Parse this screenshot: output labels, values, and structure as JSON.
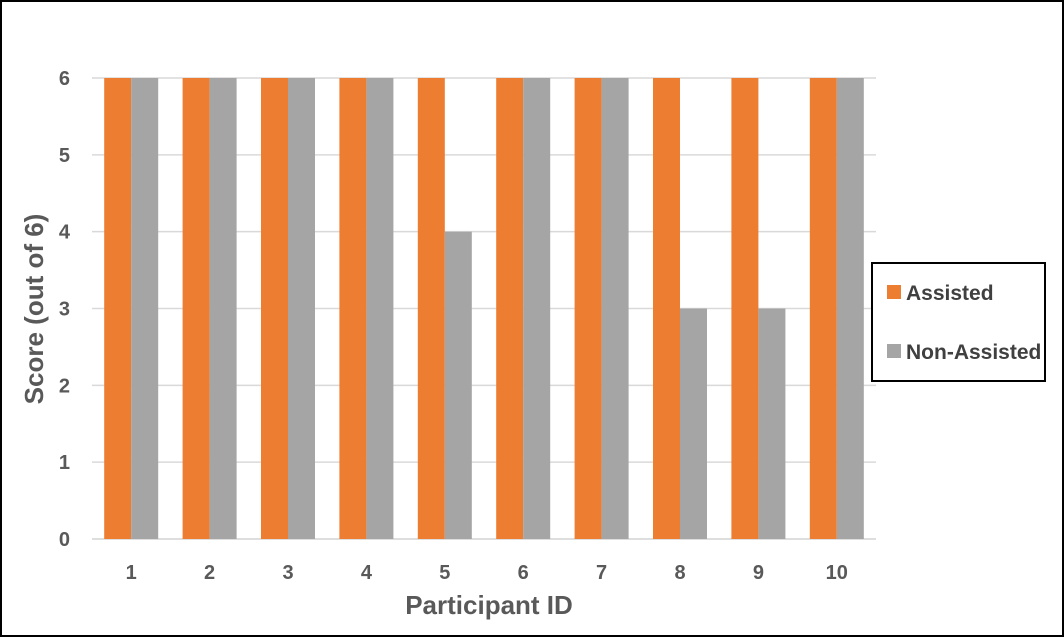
{
  "chart_data": {
    "type": "bar",
    "title": "",
    "xlabel": "Participant ID",
    "ylabel": "Score (out of 6)",
    "categories": [
      "1",
      "2",
      "3",
      "4",
      "5",
      "6",
      "7",
      "8",
      "9",
      "10"
    ],
    "series": [
      {
        "name": "Assisted",
        "color": "#ED7D31",
        "values": [
          6,
          6,
          6,
          6,
          6,
          6,
          6,
          6,
          6,
          6
        ]
      },
      {
        "name": "Non-Assisted",
        "color": "#A5A5A5",
        "values": [
          6,
          6,
          6,
          6,
          4,
          6,
          6,
          3,
          3,
          6
        ]
      }
    ],
    "ylim": [
      0,
      6
    ],
    "yticks": [
      "0",
      "1",
      "2",
      "3",
      "4",
      "5",
      "6"
    ],
    "grid": true,
    "legend": "right"
  }
}
